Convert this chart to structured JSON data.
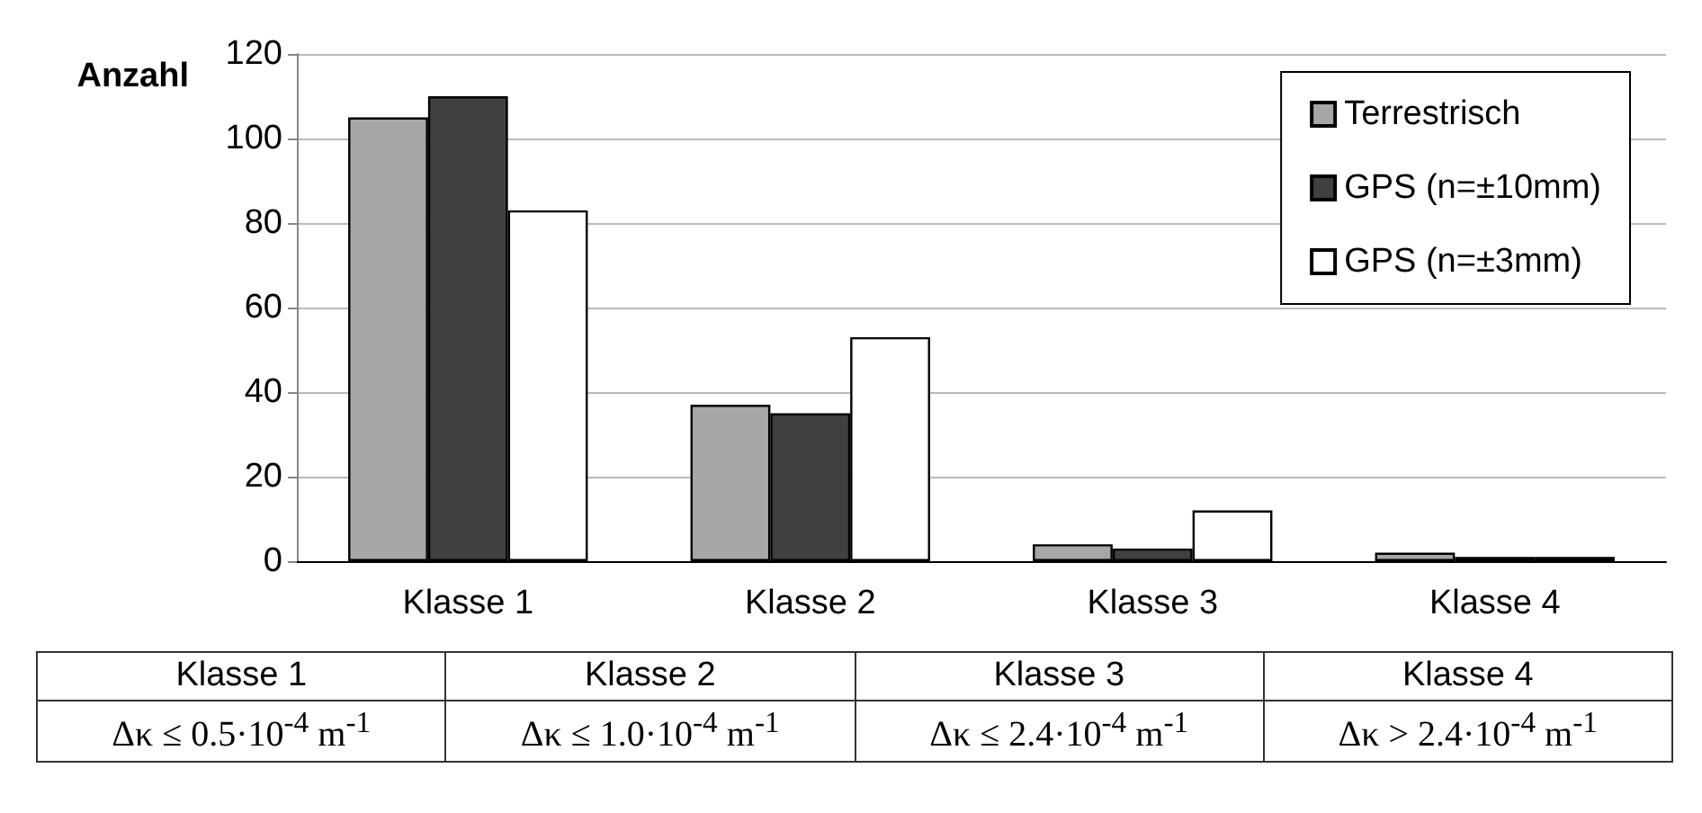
{
  "chart_data": {
    "type": "bar",
    "ylabel": "Anzahl",
    "categories": [
      "Klasse 1",
      "Klasse 2",
      "Klasse 3",
      "Klasse 4"
    ],
    "series": [
      {
        "name": "Terrestrisch",
        "color": "#a6a6a6",
        "values": [
          105,
          37,
          4,
          2
        ]
      },
      {
        "name": "GPS (n=±10mm)",
        "color": "#404040",
        "values": [
          110,
          35,
          3,
          1
        ]
      },
      {
        "name": "GPS (n=±3mm)",
        "color": "#ffffff",
        "values": [
          83,
          53,
          12,
          1
        ]
      }
    ],
    "ylim": [
      0,
      120
    ],
    "yticks": [
      0,
      20,
      40,
      60,
      80,
      100,
      120
    ],
    "grid": "y",
    "legend": "top right",
    "annotations": [
      "Klasse 1",
      "Klasse 2",
      "Klasse 3",
      "Klasse 4",
      "Δκ ≤ 0.5·10$^{-4}$ m$^{-1}$",
      "Δκ ≤ 1.0·10$^{-4}$ m$^{-1}$",
      "Δκ ≤ 2.4·10$^{-4}$ m$^{-1}$",
      "Δκ > 2.4·10$^{-4}$ m$^{-1}$"
    ]
  }
}
